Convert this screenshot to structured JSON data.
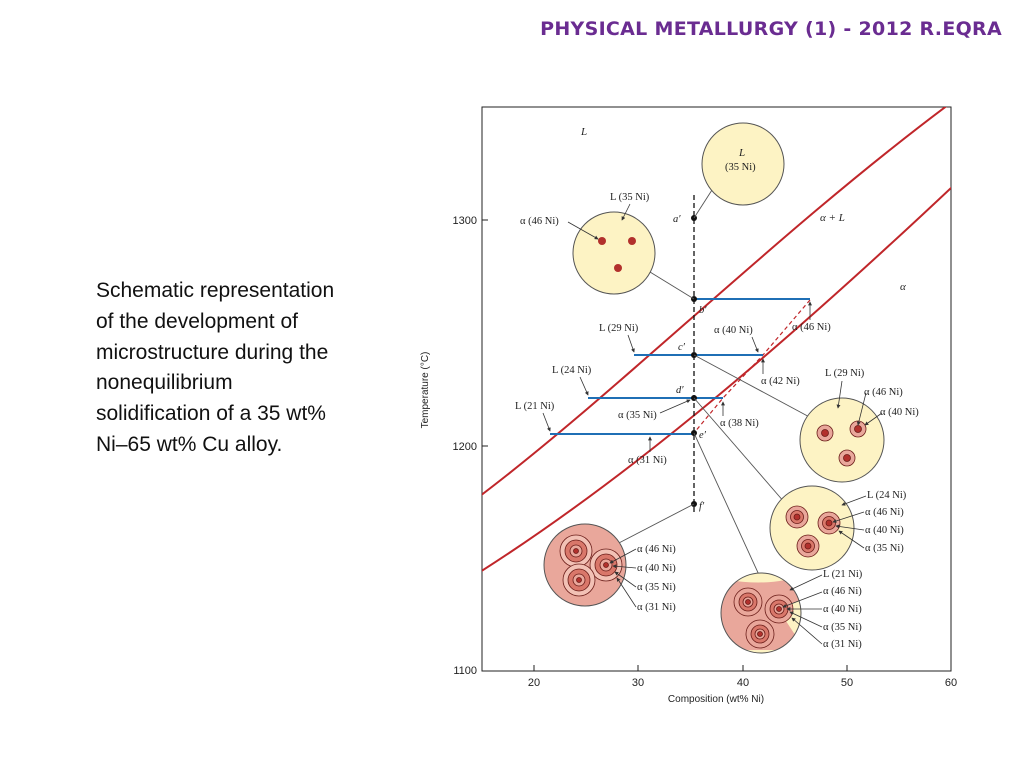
{
  "header": {
    "title": "PHYSICAL METALLURGY (1) - 2012 R.EQRA"
  },
  "caption": {
    "text": "Schematic representation of the development of microstructure during the nonequilibrium solidification of a 35 wt% Ni–65 wt% Cu alloy."
  },
  "axes": {
    "xlabel": "Composition (wt% Ni)",
    "ylabel": "Temperature (°C)",
    "x_ticks": [
      "20",
      "30",
      "40",
      "50",
      "60"
    ],
    "y_ticks": [
      "1100",
      "1200",
      "1300"
    ]
  },
  "regions": {
    "liquid": "L",
    "two_phase": "α + L",
    "solid": "α"
  },
  "points": {
    "a": "a′",
    "b": "b′",
    "c": "c′",
    "d": "d′",
    "e": "e′",
    "f": "f′"
  },
  "tie_labels": {
    "b_alpha": "α (46 Ni)",
    "c_liquid": "L (29 Ni)",
    "c_alpha": "α (40 Ni)",
    "c_alpha_avg": "α (42 Ni)",
    "d_liquid": "L (24 Ni)",
    "d_alpha": "α (35 Ni)",
    "d_alpha_avg": "α (38 Ni)",
    "e_liquid": "L (21 Ni)",
    "e_alpha": "α (31 Ni)"
  },
  "grain_a": {
    "liquid": "L",
    "liquid_comp": "(35 Ni)"
  },
  "grain_b": {
    "liquid": "L (35 Ni)",
    "alpha": "α (46 Ni)"
  },
  "grain_c": {
    "liquid": "L (29 Ni)",
    "alpha1": "α (46 Ni)",
    "alpha2": "α (40 Ni)"
  },
  "grain_d": {
    "liquid": "L (24 Ni)",
    "alpha1": "α (46 Ni)",
    "alpha2": "α (40 Ni)",
    "alpha3": "α (35 Ni)"
  },
  "grain_e": {
    "liquid": "L (21 Ni)",
    "alpha1": "α (46 Ni)",
    "alpha2": "α (40 Ni)",
    "alpha3": "α (35 Ni)",
    "alpha4": "α (31 Ni)"
  },
  "grain_f": {
    "alpha1": "α (46 Ni)",
    "alpha2": "α (40 Ni)",
    "alpha3": "α (35 Ni)",
    "alpha4": "α (31 Ni)"
  },
  "colors": {
    "line": "#c0262a",
    "tie": "#1f6fb5",
    "liquid_fill": "#fdf3c4",
    "solid_fill": "#e9a79b",
    "core": "#b2302c",
    "title": "#6a2c91"
  }
}
